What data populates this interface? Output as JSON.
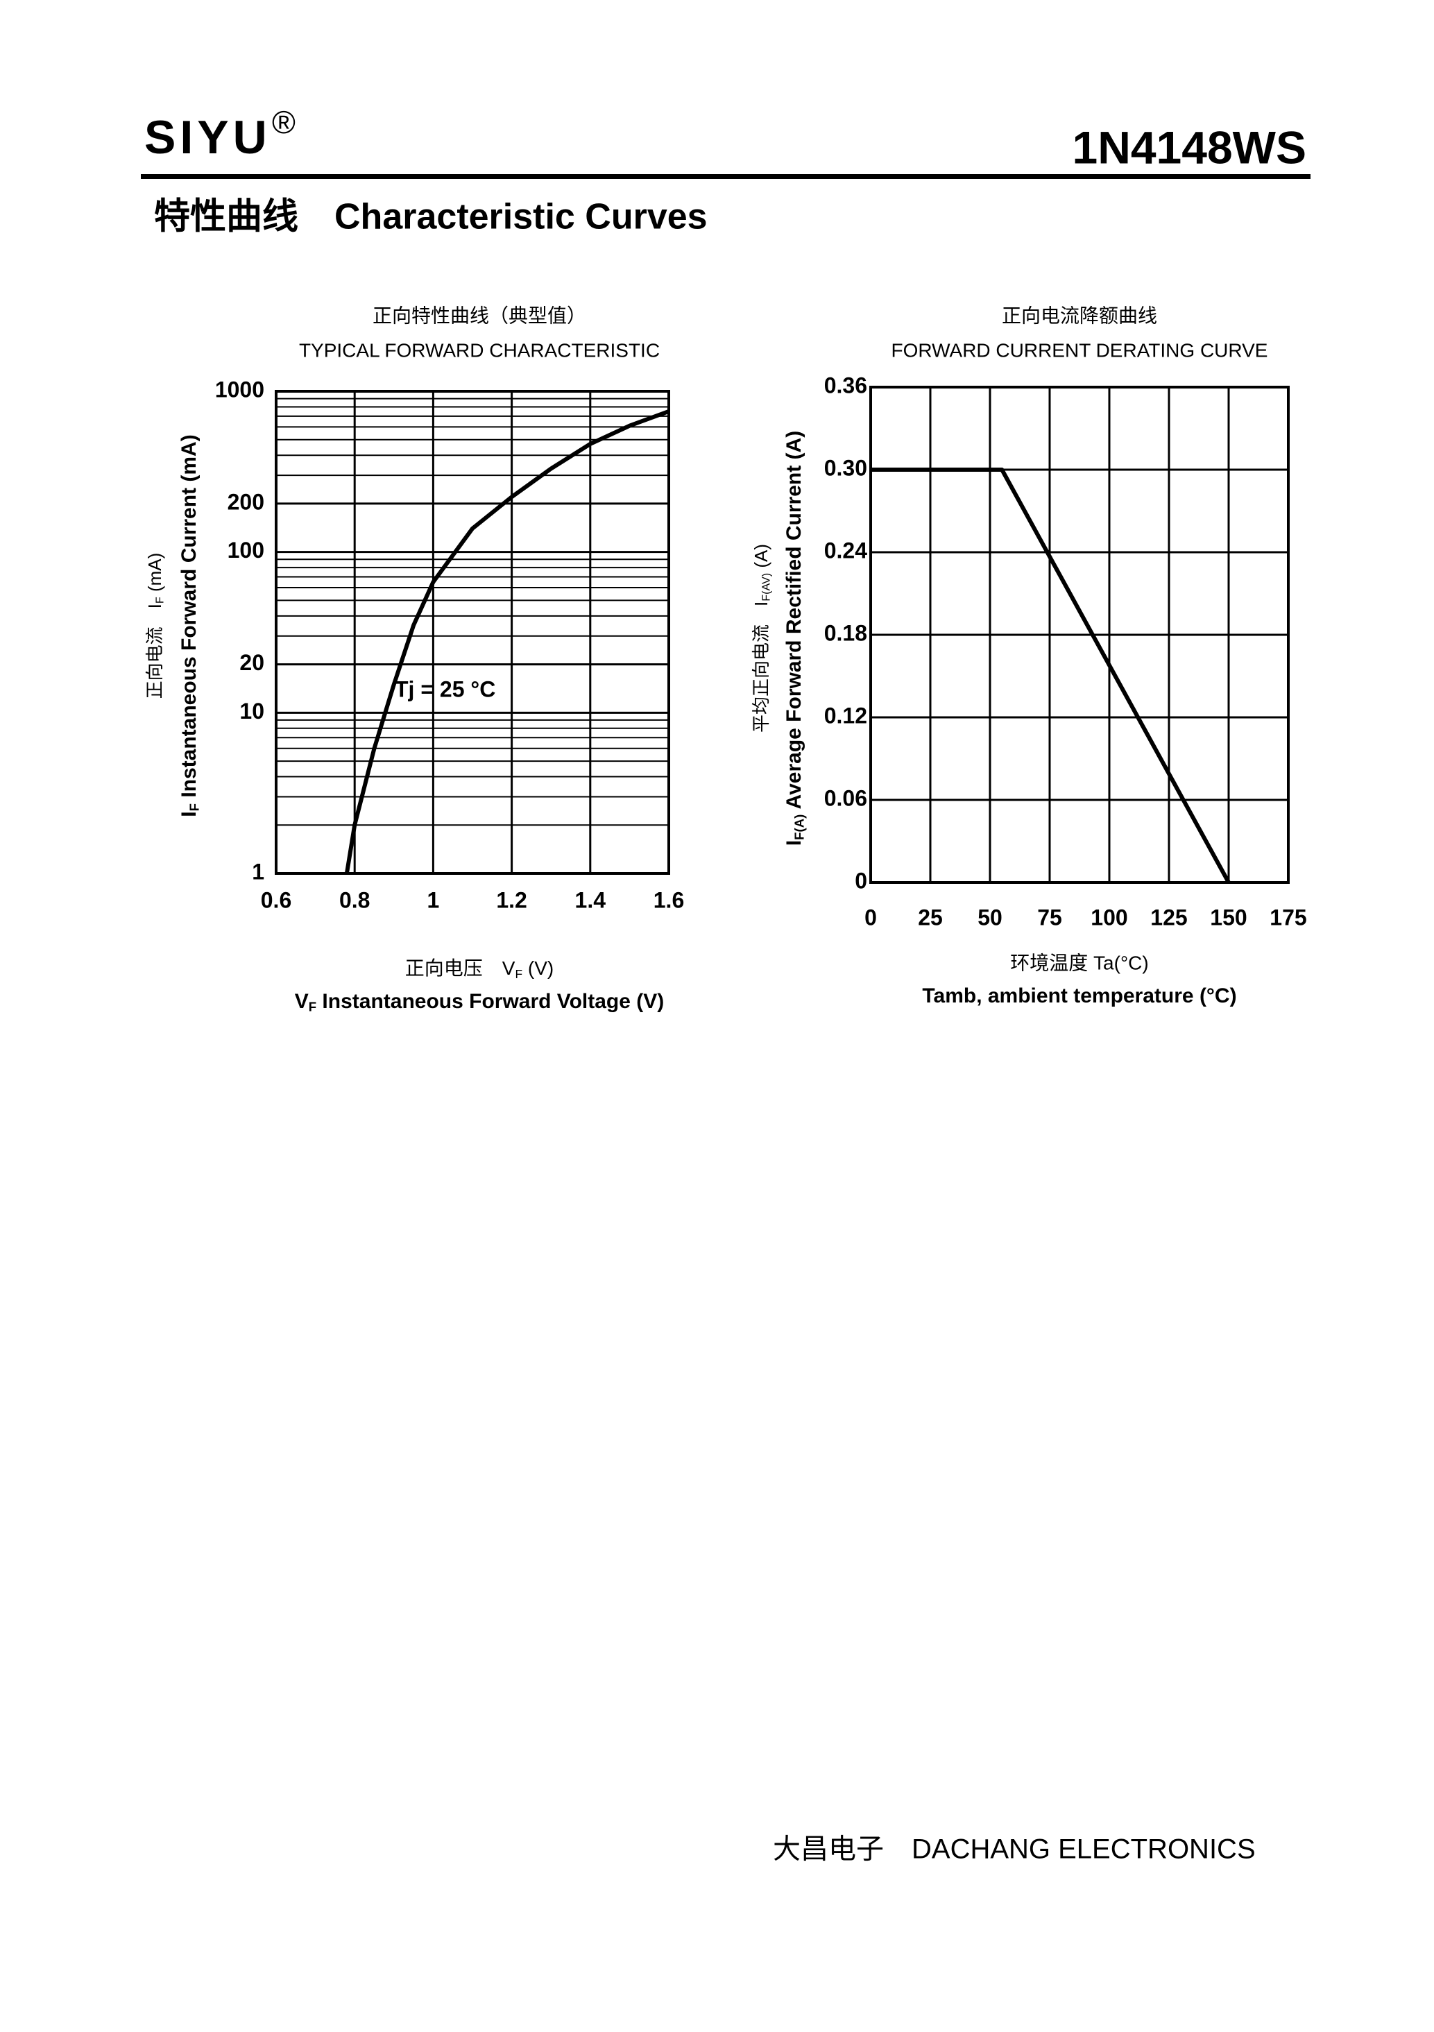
{
  "header": {
    "brand": "SIYU",
    "mark": "®",
    "part": "1N4148WS",
    "section": "特性曲线　Characteristic Curves"
  },
  "chart_data": [
    {
      "type": "line",
      "title_cn": "正向特性曲线（典型值）",
      "title": "TYPICAL FORWARD CHARACTERISTIC",
      "xlabel_cn": {
        "prefix": "正向电压　",
        "symbol": "V",
        "subscript": "F",
        "text": " (V)"
      },
      "xlabel": {
        "symbol": "V",
        "subscript": "F",
        "text": "  Instantaneous Forward Voltage (V)"
      },
      "ylabel_cn": {
        "prefix": "正向电流　",
        "symbol": "I",
        "subscript": "F",
        "text": " (mA)"
      },
      "ylabel": {
        "symbol": "I",
        "subscript": "F",
        "text": " Instantaneous Forward Current (mA)"
      },
      "annotation": "Tj = 25 °C",
      "x": [
        0.78,
        0.8,
        0.85,
        0.9,
        0.95,
        1.0,
        1.1,
        1.2,
        1.3,
        1.4,
        1.5,
        1.6
      ],
      "values": [
        1,
        2,
        6,
        15,
        35,
        65,
        140,
        220,
        330,
        470,
        610,
        750
      ],
      "color": "#000000",
      "log_y": true,
      "grid": true,
      "xlim": [
        0.6,
        1.6
      ],
      "xticks": [
        0.6,
        0.8,
        1,
        1.2,
        1.4,
        1.6
      ],
      "ylim": [
        1,
        1000
      ],
      "yticks": [
        1,
        10,
        20,
        100,
        200,
        1000
      ]
    },
    {
      "type": "line",
      "title_cn": "正向电流降额曲线",
      "title": "FORWARD CURRENT DERATING CURVE",
      "xlabel_cn": "环境温度 Ta(°C)",
      "xlabel": "Tamb, ambient temperature (°C)",
      "ylabel_cn": {
        "prefix": "平均正向电流　",
        "symbol": "I",
        "subscript": "F(AV)",
        "text": " (A)"
      },
      "ylabel": {
        "symbol": "I",
        "subscript": "F(A)",
        "text": "  Average Forward Rectified Current (A)"
      },
      "x": [
        0,
        55,
        150
      ],
      "values": [
        0.3,
        0.3,
        0
      ],
      "color": "#000000",
      "log_y": false,
      "grid": true,
      "xlim": [
        0,
        175
      ],
      "xticks": [
        0,
        25,
        50,
        75,
        100,
        125,
        150,
        175
      ],
      "ylim": [
        0,
        0.36
      ],
      "yticks": [
        0,
        0.06,
        0.12,
        0.18,
        0.24,
        {
          "value": 0.3,
          "label": "0.30"
        },
        0.36
      ]
    }
  ],
  "footer": "大昌电子　DACHANG ELECTRONICS"
}
